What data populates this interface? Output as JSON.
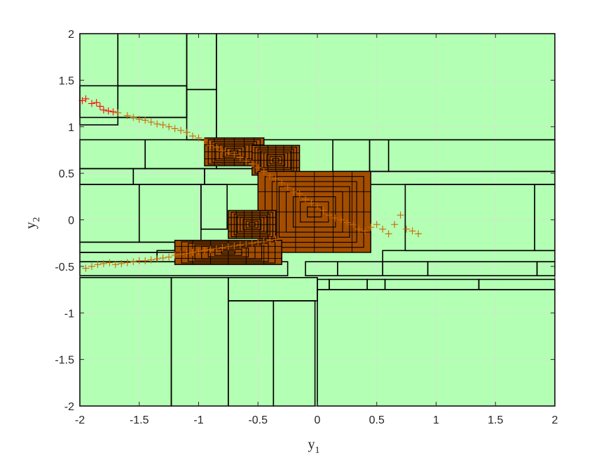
{
  "chart_data": {
    "type": "scatter",
    "title": "",
    "xlabel": "y",
    "xlabel_sub": "1",
    "ylabel": "y",
    "ylabel_sub": "2",
    "xlim": [
      -2,
      2
    ],
    "ylim": [
      -2,
      2
    ],
    "xticks": [
      -2,
      -1.5,
      -1,
      -0.5,
      0,
      0.5,
      1,
      1.5,
      2
    ],
    "yticks": [
      -2,
      -1.5,
      -1,
      -0.5,
      0,
      0.5,
      1,
      1.5,
      2
    ],
    "xtick_labels": [
      "-2",
      "-1.5",
      "-1",
      "-0.5",
      "0",
      "0.5",
      "1",
      "1.5",
      "2"
    ],
    "ytick_labels": [
      "-2",
      "-1.5",
      "-1",
      "-0.5",
      "0",
      "0.5",
      "1",
      "1.5",
      "2"
    ],
    "grid": true,
    "colors": {
      "background": "#b3ffb3",
      "box_edge": "#000000",
      "box_fill_dense": "#a34d00",
      "marker": "#cc6600",
      "marker_highlight": "#ff0000",
      "grid": "#cfe8cf"
    },
    "boxes": [
      {
        "x0": -2.0,
        "x1": -1.68,
        "y0": 1.02,
        "y1": 2.0
      },
      {
        "x0": -1.68,
        "x1": -1.1,
        "y0": 1.44,
        "y1": 2.0
      },
      {
        "x0": -1.1,
        "x1": -0.85,
        "y0": 1.4,
        "y1": 2.0
      },
      {
        "x0": -0.85,
        "x1": 2.0,
        "y0": 0.86,
        "y1": 2.0
      },
      {
        "x0": -2.0,
        "x1": -1.1,
        "y0": 1.1,
        "y1": 1.44
      },
      {
        "x0": -1.68,
        "x1": -1.1,
        "y0": 1.1,
        "y1": 1.44
      },
      {
        "x0": -1.1,
        "x1": -0.85,
        "y0": 0.86,
        "y1": 1.4
      },
      {
        "x0": -2.0,
        "x1": -1.45,
        "y0": 0.55,
        "y1": 0.86
      },
      {
        "x0": -1.45,
        "x1": -0.85,
        "y0": 0.55,
        "y1": 0.86
      },
      {
        "x0": -0.85,
        "x1": -0.45,
        "y0": 0.55,
        "y1": 0.86
      },
      {
        "x0": 0.13,
        "x1": 0.44,
        "y0": 0.52,
        "y1": 0.86
      },
      {
        "x0": 0.44,
        "x1": 0.6,
        "y0": 0.52,
        "y1": 0.86
      },
      {
        "x0": 0.6,
        "x1": 2.0,
        "y0": 0.52,
        "y1": 0.86
      },
      {
        "x0": -2.0,
        "x1": -1.55,
        "y0": 0.38,
        "y1": 0.55
      },
      {
        "x0": -1.55,
        "x1": -0.95,
        "y0": 0.38,
        "y1": 0.55
      },
      {
        "x0": -0.95,
        "x1": -0.45,
        "y0": 0.38,
        "y1": 0.55
      },
      {
        "x0": 0.44,
        "x1": 2.0,
        "y0": 0.38,
        "y1": 0.52
      },
      {
        "x0": -2.0,
        "x1": -1.5,
        "y0": -0.24,
        "y1": 0.38
      },
      {
        "x0": -1.5,
        "x1": -0.98,
        "y0": -0.24,
        "y1": 0.38
      },
      {
        "x0": -0.98,
        "x1": -0.76,
        "y0": -0.1,
        "y1": 0.38
      },
      {
        "x0": 0.74,
        "x1": 1.83,
        "y0": -0.33,
        "y1": 0.38
      },
      {
        "x0": 1.83,
        "x1": 2.0,
        "y0": -0.33,
        "y1": 0.38
      },
      {
        "x0": -2.0,
        "x1": -1.2,
        "y0": -0.35,
        "y1": -0.24
      },
      {
        "x0": -2.0,
        "x1": -1.35,
        "y0": -0.45,
        "y1": -0.35
      },
      {
        "x0": -1.35,
        "x1": -0.9,
        "y0": -0.45,
        "y1": -0.33
      },
      {
        "x0": -0.9,
        "x1": -0.3,
        "y0": -0.45,
        "y1": -0.28
      },
      {
        "x0": 0.55,
        "x1": 2.0,
        "y0": -0.45,
        "y1": -0.33
      },
      {
        "x0": -2.0,
        "x1": -0.25,
        "y0": -0.6,
        "y1": -0.45
      },
      {
        "x0": -0.1,
        "x1": 0.17,
        "y0": -0.6,
        "y1": -0.45
      },
      {
        "x0": 0.17,
        "x1": 0.55,
        "y0": -0.6,
        "y1": -0.45
      },
      {
        "x0": 0.55,
        "x1": 0.93,
        "y0": -0.6,
        "y1": -0.45
      },
      {
        "x0": 0.93,
        "x1": 1.85,
        "y0": -0.6,
        "y1": -0.45
      },
      {
        "x0": 1.85,
        "x1": 2.0,
        "y0": -0.6,
        "y1": -0.45
      },
      {
        "x0": -0.75,
        "x1": 0.0,
        "y0": -0.87,
        "y1": -0.62
      },
      {
        "x0": 0.0,
        "x1": 0.1,
        "y0": -0.75,
        "y1": -0.64
      },
      {
        "x0": 0.1,
        "x1": 0.42,
        "y0": -0.75,
        "y1": -0.64
      },
      {
        "x0": 0.42,
        "x1": 0.57,
        "y0": -0.75,
        "y1": -0.64
      },
      {
        "x0": 0.57,
        "x1": 1.36,
        "y0": -0.75,
        "y1": -0.64
      },
      {
        "x0": 1.36,
        "x1": 2.0,
        "y0": -0.75,
        "y1": -0.64
      },
      {
        "x0": -2.0,
        "x1": -1.23,
        "y0": -2.0,
        "y1": -0.62
      },
      {
        "x0": -1.23,
        "x1": -0.75,
        "y0": -2.0,
        "y1": -0.62
      },
      {
        "x0": -0.75,
        "x1": -0.37,
        "y0": -2.0,
        "y1": -0.87
      },
      {
        "x0": -0.37,
        "x1": -0.02,
        "y0": -2.0,
        "y1": -0.87
      },
      {
        "x0": 0.0,
        "x1": 2.0,
        "y0": -2.0,
        "y1": -0.75
      }
    ],
    "dense_regions": [
      {
        "x0": -0.95,
        "x1": -0.45,
        "y0": 0.58,
        "y1": 0.88
      },
      {
        "x0": -0.55,
        "x1": -0.15,
        "y0": 0.48,
        "y1": 0.8
      },
      {
        "x0": -0.5,
        "x1": 0.45,
        "y0": -0.35,
        "y1": 0.52
      },
      {
        "x0": -1.2,
        "x1": -0.3,
        "y0": -0.48,
        "y1": -0.22
      },
      {
        "x0": -0.75,
        "x1": -0.35,
        "y0": -0.2,
        "y1": 0.1
      }
    ],
    "series": [
      {
        "x": [
          -1.98,
          -1.95,
          -1.9,
          -1.86,
          -1.83,
          -1.8,
          -1.76,
          -1.72
        ],
        "y": [
          1.28,
          1.3,
          1.25,
          1.26,
          1.22,
          1.18,
          1.17,
          1.16
        ]
      },
      {
        "x": [
          -1.68,
          -1.6,
          -1.55,
          -1.5,
          -1.45,
          -1.4,
          -1.35,
          -1.3,
          -1.25,
          -1.2,
          -1.15,
          -1.1,
          -1.05,
          -1.0,
          -0.95,
          -0.9,
          -0.85,
          -0.8,
          -0.75,
          -0.7,
          -0.65,
          -0.6,
          -0.55,
          -0.5,
          -0.45,
          -0.4,
          -0.35,
          -0.3,
          -0.25,
          -0.2,
          -0.15,
          -0.1,
          -0.05,
          0.0,
          0.05,
          0.1,
          0.15,
          0.2,
          0.25,
          0.3,
          0.35,
          0.4,
          0.45,
          0.5,
          0.55,
          0.6,
          0.65,
          0.7,
          0.75,
          0.8,
          0.85
        ],
        "y": [
          1.15,
          1.12,
          1.1,
          1.08,
          1.07,
          1.05,
          1.03,
          1.02,
          1.0,
          0.98,
          0.96,
          0.94,
          0.9,
          0.88,
          0.85,
          0.8,
          0.78,
          0.74,
          0.72,
          0.7,
          0.67,
          0.63,
          0.6,
          0.56,
          0.52,
          0.47,
          0.44,
          0.4,
          0.35,
          0.3,
          0.28,
          0.22,
          0.18,
          0.15,
          0.1,
          0.05,
          0.02,
          0.0,
          -0.03,
          -0.05,
          -0.1,
          -0.12,
          -0.08,
          -0.05,
          -0.1,
          -0.15,
          -0.05,
          0.05,
          -0.1,
          -0.12,
          -0.15
        ]
      },
      {
        "x": [
          -1.95,
          -1.9,
          -1.85,
          -1.8,
          -1.75,
          -1.7,
          -1.65,
          -1.6,
          -1.55,
          -1.5,
          -1.45,
          -1.4,
          -1.35,
          -1.3,
          -1.25,
          -1.2,
          -1.15,
          -1.1,
          -1.05,
          -1.0,
          -0.95,
          -0.9,
          -0.85,
          -0.8,
          -0.75,
          -0.7,
          -0.65,
          -0.6,
          -0.55,
          -0.5,
          -0.45,
          -0.4,
          -0.35
        ],
        "y": [
          -0.52,
          -0.5,
          -0.48,
          -0.47,
          -0.46,
          -0.48,
          -0.47,
          -0.46,
          -0.45,
          -0.44,
          -0.44,
          -0.43,
          -0.42,
          -0.41,
          -0.4,
          -0.38,
          -0.37,
          -0.36,
          -0.35,
          -0.34,
          -0.33,
          -0.32,
          -0.31,
          -0.3,
          -0.29,
          -0.28,
          -0.27,
          -0.26,
          -0.25,
          -0.24,
          -0.23,
          -0.22,
          -0.21
        ]
      }
    ]
  }
}
